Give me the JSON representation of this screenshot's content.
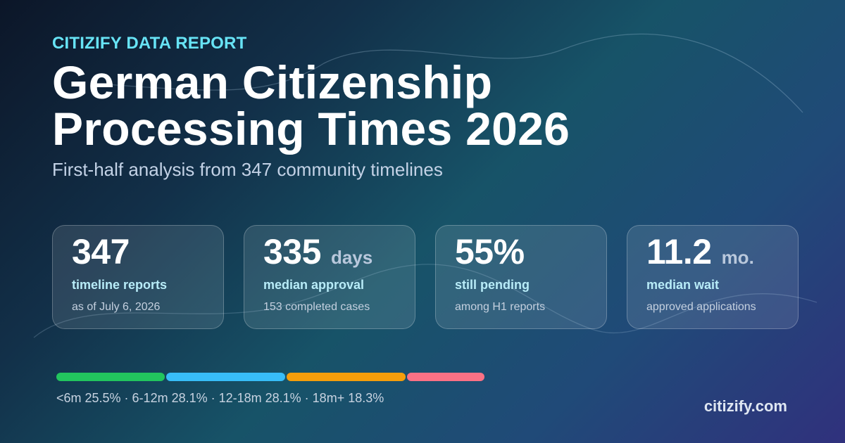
{
  "header": {
    "eyebrow": "CITIZIFY DATA REPORT",
    "title_line1": "German Citizenship",
    "title_line2": "Processing Times 2026",
    "subtitle": "First-half analysis from 347 community timelines"
  },
  "stats": [
    {
      "value": "347",
      "unit": "",
      "label": "timeline reports",
      "note": "as of July 6, 2026"
    },
    {
      "value": "335",
      "unit": "days",
      "label": "median approval",
      "note": "153 completed cases"
    },
    {
      "value": "55%",
      "unit": "",
      "label": "still pending",
      "note": "among H1 reports"
    },
    {
      "value": "11.2",
      "unit": "mo.",
      "label": "median wait",
      "note": "approved applications"
    }
  ],
  "distribution": {
    "segments": [
      {
        "label": "<6m",
        "percent": 25.5,
        "color": "#22c55e"
      },
      {
        "label": "6-12m",
        "percent": 28.1,
        "color": "#38bdf8"
      },
      {
        "label": "12-18m",
        "percent": 28.1,
        "color": "#f59e0b"
      },
      {
        "label": "18m+",
        "percent": 18.3,
        "color": "#fb7185"
      }
    ],
    "caption": "<6m 25.5% · 6-12m 28.1% · 12-18m 28.1% · 18m+ 18.3%"
  },
  "footer": {
    "site": "citizify.com"
  }
}
